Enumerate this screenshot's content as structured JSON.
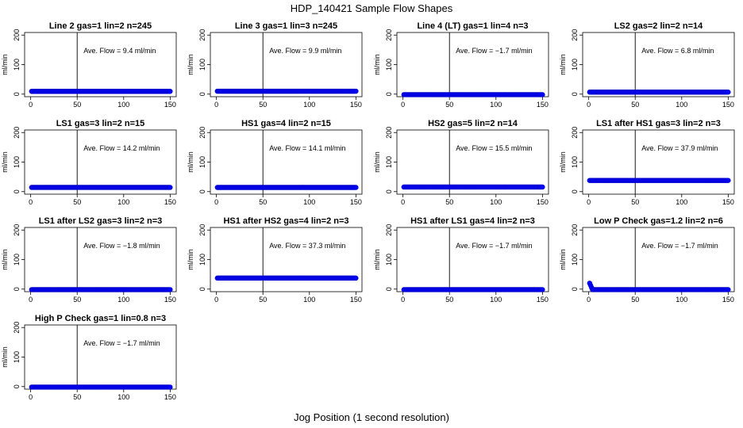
{
  "title": "HDP_140421  Sample Flow Shapes",
  "xlabel": "Jog Position (1 second resolution)",
  "colors": {
    "points": "#0000ff",
    "axes": "#000000"
  },
  "chart_data": {
    "type": "scatter",
    "shared": {
      "ylabel": "ml/min",
      "xlim": [
        0,
        150
      ],
      "ylim": [
        0,
        200
      ],
      "xticks": [
        0,
        50,
        100,
        150
      ],
      "yticks": [
        0,
        100,
        200
      ],
      "vline_x": 50,
      "flow_label_prefix": "Ave. Flow = ",
      "flow_label_unit": "  ml/min"
    },
    "panels": [
      {
        "title": "Line 2 gas=1 lin=2 n=245",
        "avg_flow": "9.4",
        "level": 9.4
      },
      {
        "title": "Line 3 gas=1 lin=3 n=245",
        "avg_flow": "9.9",
        "level": 9.9
      },
      {
        "title": "Line 4 (LT) gas=1 lin=4 n=3",
        "avg_flow": "−1.7",
        "level": -1.7
      },
      {
        "title": "LS2 gas=2 lin=2 n=14",
        "avg_flow": "6.8",
        "level": 6.8
      },
      {
        "title": "LS1 gas=3 lin=2 n=15",
        "avg_flow": "14.2",
        "level": 14.2
      },
      {
        "title": "HS1 gas=4 lin=2 n=15",
        "avg_flow": "14.1",
        "level": 14.1
      },
      {
        "title": "HS2 gas=5 lin=2 n=14",
        "avg_flow": "15.5",
        "level": 15.5
      },
      {
        "title": "LS1 after HS1 gas=3 lin=2 n=3",
        "avg_flow": "37.9",
        "level": 37.9
      },
      {
        "title": "LS1 after LS2 gas=3 lin=2 n=3",
        "avg_flow": "−1.8",
        "level": -1.8
      },
      {
        "title": "HS1 after HS2 gas=4 lin=2 n=3",
        "avg_flow": "37.3",
        "level": 37.3
      },
      {
        "title": "HS1 after LS1 gas=4 lin=2 n=3",
        "avg_flow": "−1.7",
        "level": -1.7
      },
      {
        "title": "Low P Check gas=1.2 lin=2 n=6",
        "avg_flow": "−1.7",
        "level": -1.7,
        "start_spike": 20
      },
      {
        "title": "High P Check gas=1 lin=0.8 n=3",
        "avg_flow": "−1.7",
        "level": -1.7
      }
    ]
  }
}
